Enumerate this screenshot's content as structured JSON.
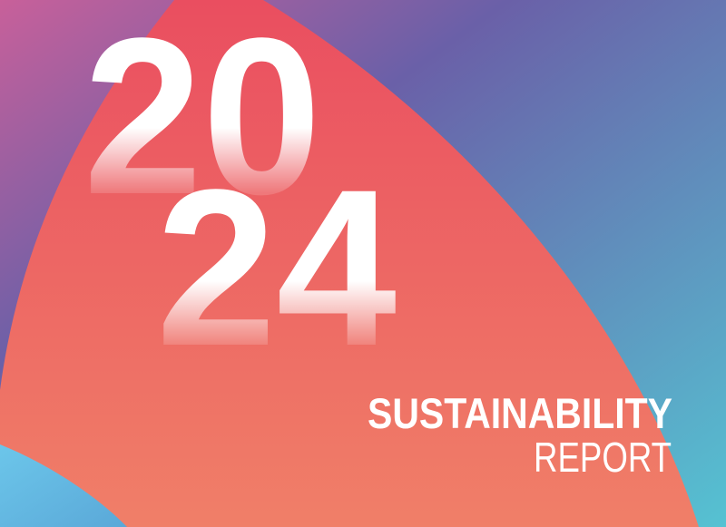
{
  "cover": {
    "year_top": "20",
    "year_bottom": "24",
    "title": "SUSTAINABILITY",
    "subtitle": "REPORT"
  },
  "colors": {
    "background_left": "#c8609a",
    "background_top": "#6a60a8",
    "background_bottom_right": "#55c2d2",
    "shape_top": "#ea4e60",
    "shape_bottom": "#f07f68",
    "circle": "#68c0e6",
    "text": "#ffffff"
  }
}
